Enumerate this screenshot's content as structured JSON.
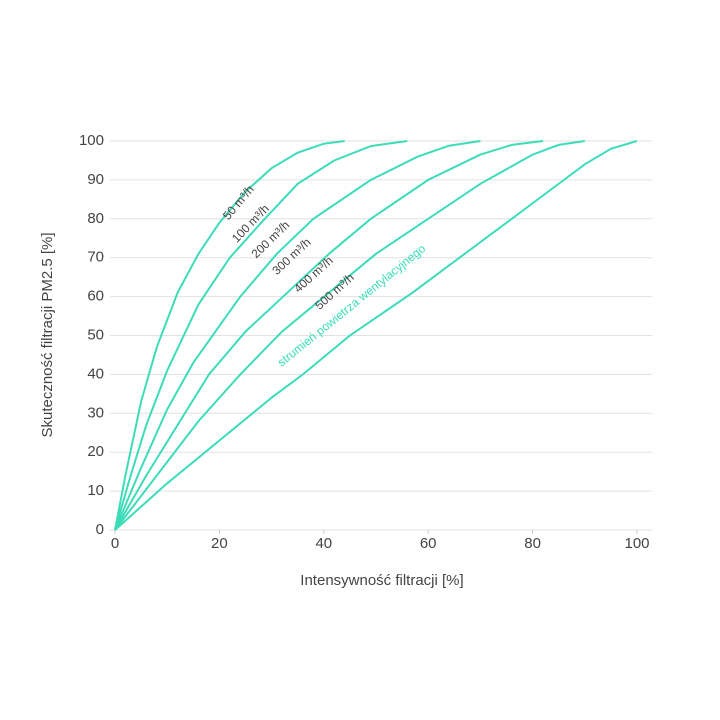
{
  "chart_data": {
    "type": "line",
    "x_label": "Intensywność filtracji [%]",
    "y_label": "Skuteczność filtracji PM2.5 [%]",
    "annotation": "strumień powietrza wentylacyjnego",
    "xlim": [
      0,
      100
    ],
    "xticks": [
      0,
      20,
      40,
      60,
      80,
      100
    ],
    "ylim": [
      0,
      100
    ],
    "yticks": [
      0,
      10,
      20,
      30,
      40,
      50,
      60,
      70,
      80,
      90,
      100
    ],
    "grid": true,
    "series": [
      {
        "name": "50 m³/h",
        "color": "#3ddcb9",
        "x": [
          0,
          2,
          5,
          8,
          12,
          16,
          20,
          25,
          30,
          35,
          40,
          44
        ],
        "values": [
          0,
          14,
          33,
          47,
          61,
          71,
          79,
          87,
          93,
          97,
          99.3,
          100
        ]
      },
      {
        "name": "100 m³/h",
        "color": "#3ddcb9",
        "x": [
          0,
          3,
          6,
          10,
          16,
          22,
          28,
          35,
          42,
          49,
          56
        ],
        "values": [
          0,
          14,
          27,
          41,
          58,
          70,
          79,
          89,
          95,
          98.7,
          100
        ]
      },
      {
        "name": "200 m³/h",
        "color": "#3ddcb9",
        "x": [
          0,
          5,
          10,
          15,
          24,
          31,
          38,
          49,
          58,
          64,
          70
        ],
        "values": [
          0,
          16,
          31,
          43,
          60,
          71,
          80,
          90,
          96,
          98.8,
          100
        ]
      },
      {
        "name": "300 m³/h",
        "color": "#3ddcb9",
        "x": [
          0,
          6,
          12,
          18,
          25,
          33,
          41,
          49,
          60,
          70,
          76,
          82
        ],
        "values": [
          0,
          14,
          27,
          40,
          51,
          61,
          71,
          80,
          90,
          96.5,
          99,
          100
        ]
      },
      {
        "name": "400 m³/h",
        "color": "#3ddcb9",
        "x": [
          0,
          8,
          16,
          24,
          32,
          41,
          50,
          60,
          70,
          80,
          85,
          90
        ],
        "values": [
          0,
          14,
          28,
          40,
          51,
          61,
          71,
          80,
          89,
          96.5,
          99,
          100
        ]
      },
      {
        "name": "500 m³/h",
        "color": "#3ddcb9",
        "x": [
          0,
          10,
          20,
          30,
          36,
          45,
          57,
          66,
          74,
          82,
          90,
          95,
          100
        ],
        "values": [
          0,
          12,
          23,
          34,
          40,
          50,
          61,
          70,
          78,
          86,
          94,
          98,
          100
        ]
      }
    ]
  }
}
